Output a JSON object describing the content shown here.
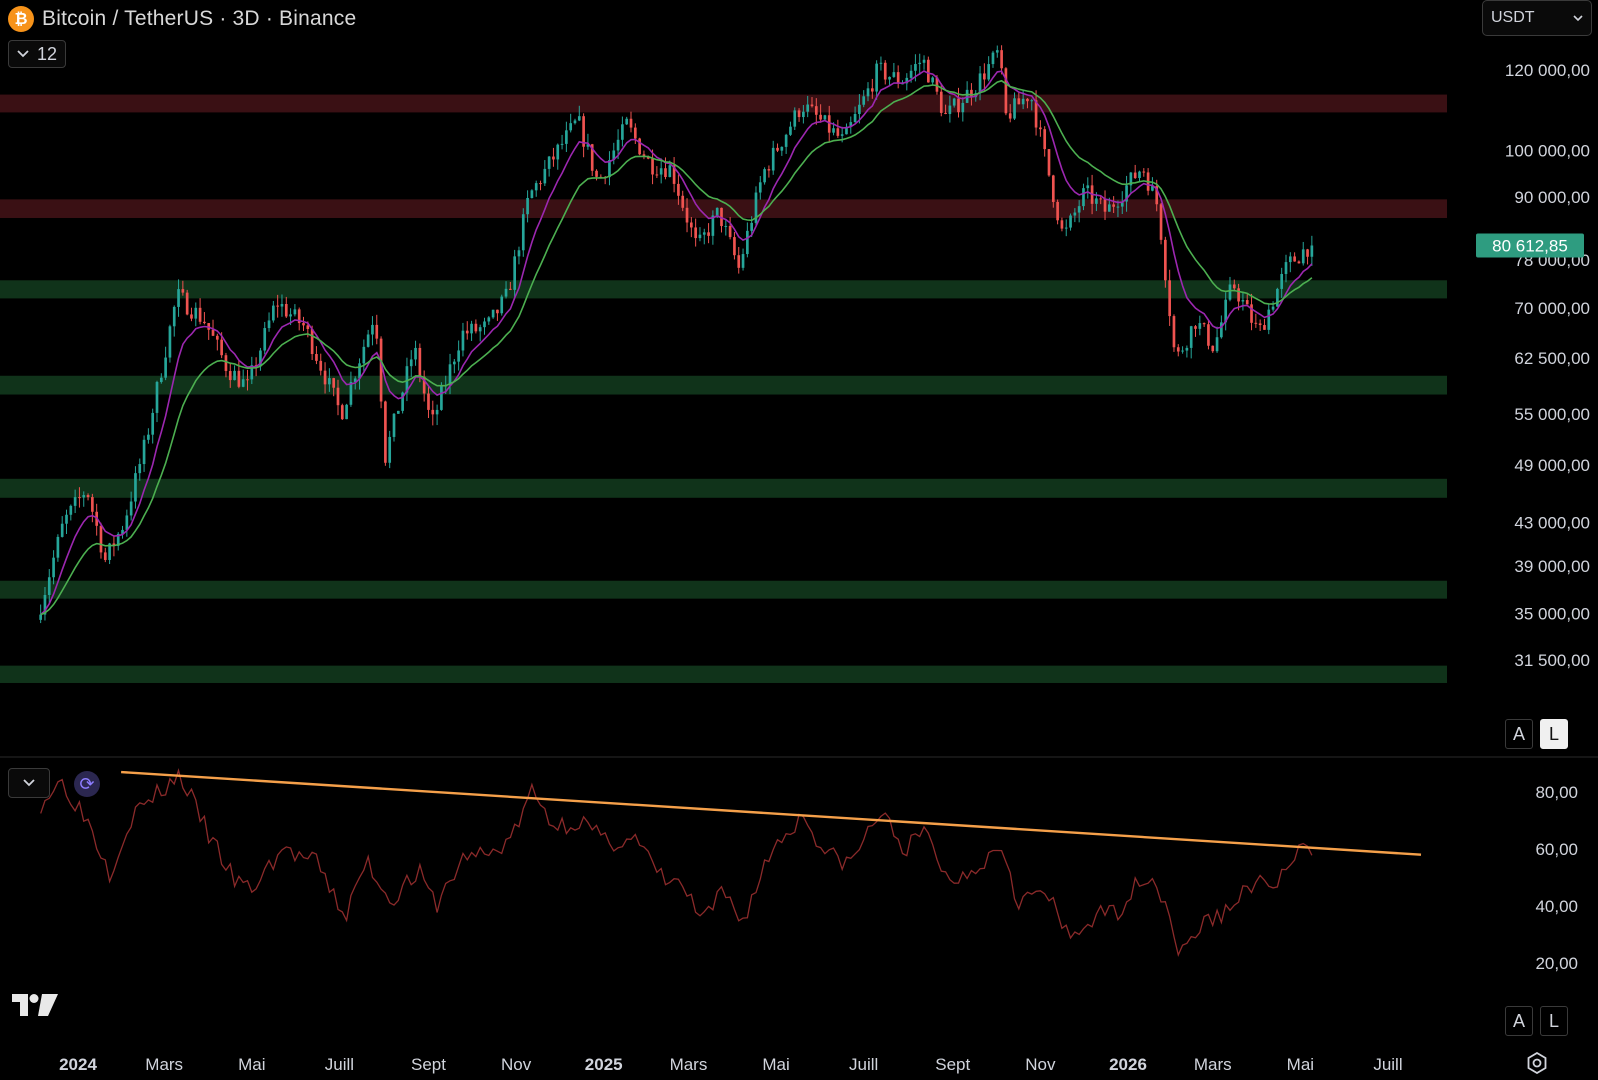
{
  "header": {
    "coin_symbol": "₿",
    "title": "Bitcoin / TetherUS · 3D · Binance"
  },
  "controls": {
    "indicator_count": "12",
    "currency": "USDT",
    "scale_auto": "A",
    "scale_log": "L"
  },
  "colors": {
    "up": "#26a69a",
    "down": "#ef5350",
    "ema_fast": "#9c27b0",
    "ema_slow": "#4caf50",
    "resistance_zone": "#3a1014",
    "support_zone": "#10331a",
    "rsi_line": "#8b2a2a",
    "trendline": "#f5a04a",
    "last_price_bg": "#2e9c80"
  },
  "icons": {
    "chevron": "chevron-down-icon",
    "sync": "sync-icon",
    "logo": "tradingview-logo",
    "settings": "gear-icon"
  },
  "chart_data": [
    {
      "type": "candlestick",
      "title": "Bitcoin / TetherUS · 3D · Binance",
      "log_scale": true,
      "ylim": [
        29500,
        130000
      ],
      "y_ticks": [
        {
          "value": 120000,
          "label": "120 000,00"
        },
        {
          "value": 100000,
          "label": "100 000,00"
        },
        {
          "value": 90000,
          "label": "90 000,00"
        },
        {
          "value": 78000,
          "label": "78 000,00"
        },
        {
          "value": 70000,
          "label": "70 000,00"
        },
        {
          "value": 62500,
          "label": "62 500,00"
        },
        {
          "value": 55000,
          "label": "55 000,00"
        },
        {
          "value": 49000,
          "label": "49 000,00"
        },
        {
          "value": 43000,
          "label": "43 000,00"
        },
        {
          "value": 39000,
          "label": "39 000,00"
        },
        {
          "value": 35000,
          "label": "35 000,00"
        },
        {
          "value": 31500,
          "label": "31 500,00"
        }
      ],
      "last_price": {
        "value": 80612.85,
        "label": "80 612,85"
      },
      "xlim": [
        "2023-12-06",
        "2026-08-12"
      ],
      "x_ticks": [
        {
          "date": "2024-01-01",
          "label": "2024",
          "bold": true
        },
        {
          "date": "2024-03-01",
          "label": "Mars",
          "bold": false
        },
        {
          "date": "2024-05-01",
          "label": "Mai",
          "bold": false
        },
        {
          "date": "2024-07-01",
          "label": "Juill",
          "bold": false
        },
        {
          "date": "2024-09-01",
          "label": "Sept",
          "bold": false
        },
        {
          "date": "2024-11-01",
          "label": "Nov",
          "bold": false
        },
        {
          "date": "2025-01-01",
          "label": "2025",
          "bold": true
        },
        {
          "date": "2025-03-01",
          "label": "Mars",
          "bold": false
        },
        {
          "date": "2025-05-01",
          "label": "Mai",
          "bold": false
        },
        {
          "date": "2025-07-01",
          "label": "Juill",
          "bold": false
        },
        {
          "date": "2025-09-01",
          "label": "Sept",
          "bold": false
        },
        {
          "date": "2025-11-01",
          "label": "Nov",
          "bold": false
        },
        {
          "date": "2026-01-01",
          "label": "2026",
          "bold": true
        },
        {
          "date": "2026-03-01",
          "label": "Mars",
          "bold": false
        },
        {
          "date": "2026-05-01",
          "label": "Mai",
          "bold": false
        },
        {
          "date": "2026-07-01",
          "label": "Juill",
          "bold": false
        }
      ],
      "zones": [
        {
          "kind": "resistance",
          "low": 109000,
          "high": 113500
        },
        {
          "kind": "resistance",
          "low": 85800,
          "high": 89500
        },
        {
          "kind": "support",
          "low": 71500,
          "high": 74500
        },
        {
          "kind": "support",
          "low": 57500,
          "high": 60000
        },
        {
          "kind": "support",
          "low": 45500,
          "high": 47500
        },
        {
          "kind": "support",
          "low": 36200,
          "high": 37700
        },
        {
          "kind": "support",
          "low": 29900,
          "high": 31100
        }
      ],
      "path": [
        [
          "2023-12-06",
          34500
        ],
        [
          "2023-12-25",
          43000
        ],
        [
          "2024-01-10",
          46500
        ],
        [
          "2024-01-23",
          39500
        ],
        [
          "2024-02-05",
          43000
        ],
        [
          "2024-02-20",
          51500
        ],
        [
          "2024-03-13",
          72000
        ],
        [
          "2024-04-01",
          68000
        ],
        [
          "2024-04-17",
          61000
        ],
        [
          "2024-05-01",
          58500
        ],
        [
          "2024-05-21",
          71000
        ],
        [
          "2024-06-10",
          67000
        ],
        [
          "2024-07-05",
          55000
        ],
        [
          "2024-07-29",
          69500
        ],
        [
          "2024-08-05",
          50000
        ],
        [
          "2024-08-25",
          64000
        ],
        [
          "2024-09-06",
          53500
        ],
        [
          "2024-09-27",
          66000
        ],
        [
          "2024-10-15",
          67000
        ],
        [
          "2024-10-29",
          72000
        ],
        [
          "2024-11-13",
          90000
        ],
        [
          "2024-12-05",
          101000
        ],
        [
          "2024-12-17",
          107000
        ],
        [
          "2024-12-31",
          93000
        ],
        [
          "2025-01-20",
          106000
        ],
        [
          "2025-02-05",
          97000
        ],
        [
          "2025-02-20",
          96000
        ],
        [
          "2025-03-10",
          80000
        ],
        [
          "2025-03-25",
          87000
        ],
        [
          "2025-04-08",
          76500
        ],
        [
          "2025-04-25",
          95000
        ],
        [
          "2025-05-22",
          111000
        ],
        [
          "2025-06-20",
          102000
        ],
        [
          "2025-07-14",
          120000
        ],
        [
          "2025-07-30",
          117000
        ],
        [
          "2025-08-14",
          123000
        ],
        [
          "2025-08-30",
          108000
        ],
        [
          "2025-09-20",
          116000
        ],
        [
          "2025-10-06",
          125000
        ],
        [
          "2025-10-11",
          108000
        ],
        [
          "2025-10-28",
          114000
        ],
        [
          "2025-11-20",
          82000
        ],
        [
          "2025-12-05",
          91000
        ],
        [
          "2025-12-20",
          87000
        ],
        [
          "2026-01-14",
          96500
        ],
        [
          "2026-01-25",
          88000
        ],
        [
          "2026-02-06",
          62000
        ],
        [
          "2026-02-20",
          68000
        ],
        [
          "2026-03-05",
          64000
        ],
        [
          "2026-03-18",
          74000
        ],
        [
          "2026-04-05",
          66000
        ],
        [
          "2026-04-25",
          77000
        ],
        [
          "2026-05-10",
          80612
        ]
      ],
      "series": [
        {
          "kind": "ema",
          "period": 9
        },
        {
          "kind": "ema",
          "period": 21
        }
      ]
    },
    {
      "type": "line",
      "ylim": [
        14,
        91
      ],
      "y_ticks": [
        {
          "value": 80,
          "label": "80,00"
        },
        {
          "value": 60,
          "label": "60,00"
        },
        {
          "value": 40,
          "label": "40,00"
        },
        {
          "value": 20,
          "label": "20,00"
        }
      ],
      "rsi_path": [
        [
          "2023-12-06",
          76
        ],
        [
          "2023-12-20",
          84
        ],
        [
          "2024-01-08",
          70
        ],
        [
          "2024-01-23",
          52
        ],
        [
          "2024-02-08",
          72
        ],
        [
          "2024-03-12",
          86
        ],
        [
          "2024-04-01",
          65
        ],
        [
          "2024-04-20",
          48
        ],
        [
          "2024-05-02",
          46
        ],
        [
          "2024-05-22",
          60
        ],
        [
          "2024-06-15",
          55
        ],
        [
          "2024-07-05",
          36
        ],
        [
          "2024-07-20",
          56
        ],
        [
          "2024-08-05",
          42
        ],
        [
          "2024-08-25",
          52
        ],
        [
          "2024-09-06",
          40
        ],
        [
          "2024-09-27",
          58
        ],
        [
          "2024-10-15",
          58
        ],
        [
          "2024-10-30",
          65
        ],
        [
          "2024-11-12",
          80
        ],
        [
          "2024-11-28",
          68
        ],
        [
          "2024-12-16",
          70
        ],
        [
          "2025-01-03",
          62
        ],
        [
          "2025-01-22",
          64
        ],
        [
          "2025-02-10",
          50
        ],
        [
          "2025-02-25",
          47
        ],
        [
          "2025-03-11",
          34
        ],
        [
          "2025-03-25",
          45
        ],
        [
          "2025-04-08",
          35
        ],
        [
          "2025-04-28",
          60
        ],
        [
          "2025-05-20",
          72
        ],
        [
          "2025-06-05",
          58
        ],
        [
          "2025-06-22",
          55
        ],
        [
          "2025-07-12",
          73
        ],
        [
          "2025-07-30",
          60
        ],
        [
          "2025-08-14",
          66
        ],
        [
          "2025-08-29",
          48
        ],
        [
          "2025-09-20",
          55
        ],
        [
          "2025-10-06",
          62
        ],
        [
          "2025-10-16",
          42
        ],
        [
          "2025-11-05",
          45
        ],
        [
          "2025-11-21",
          28
        ],
        [
          "2025-12-08",
          36
        ],
        [
          "2025-12-24",
          38
        ],
        [
          "2026-01-14",
          52
        ],
        [
          "2026-01-29",
          40
        ],
        [
          "2026-02-06",
          22
        ],
        [
          "2026-02-20",
          33
        ],
        [
          "2026-03-10",
          38
        ],
        [
          "2026-03-28",
          48
        ],
        [
          "2026-04-12",
          47
        ],
        [
          "2026-05-03",
          60
        ],
        [
          "2026-05-10",
          59
        ]
      ],
      "trendline": [
        [
          "2024-01-31",
          87
        ],
        [
          "2026-07-24",
          58
        ]
      ]
    }
  ]
}
